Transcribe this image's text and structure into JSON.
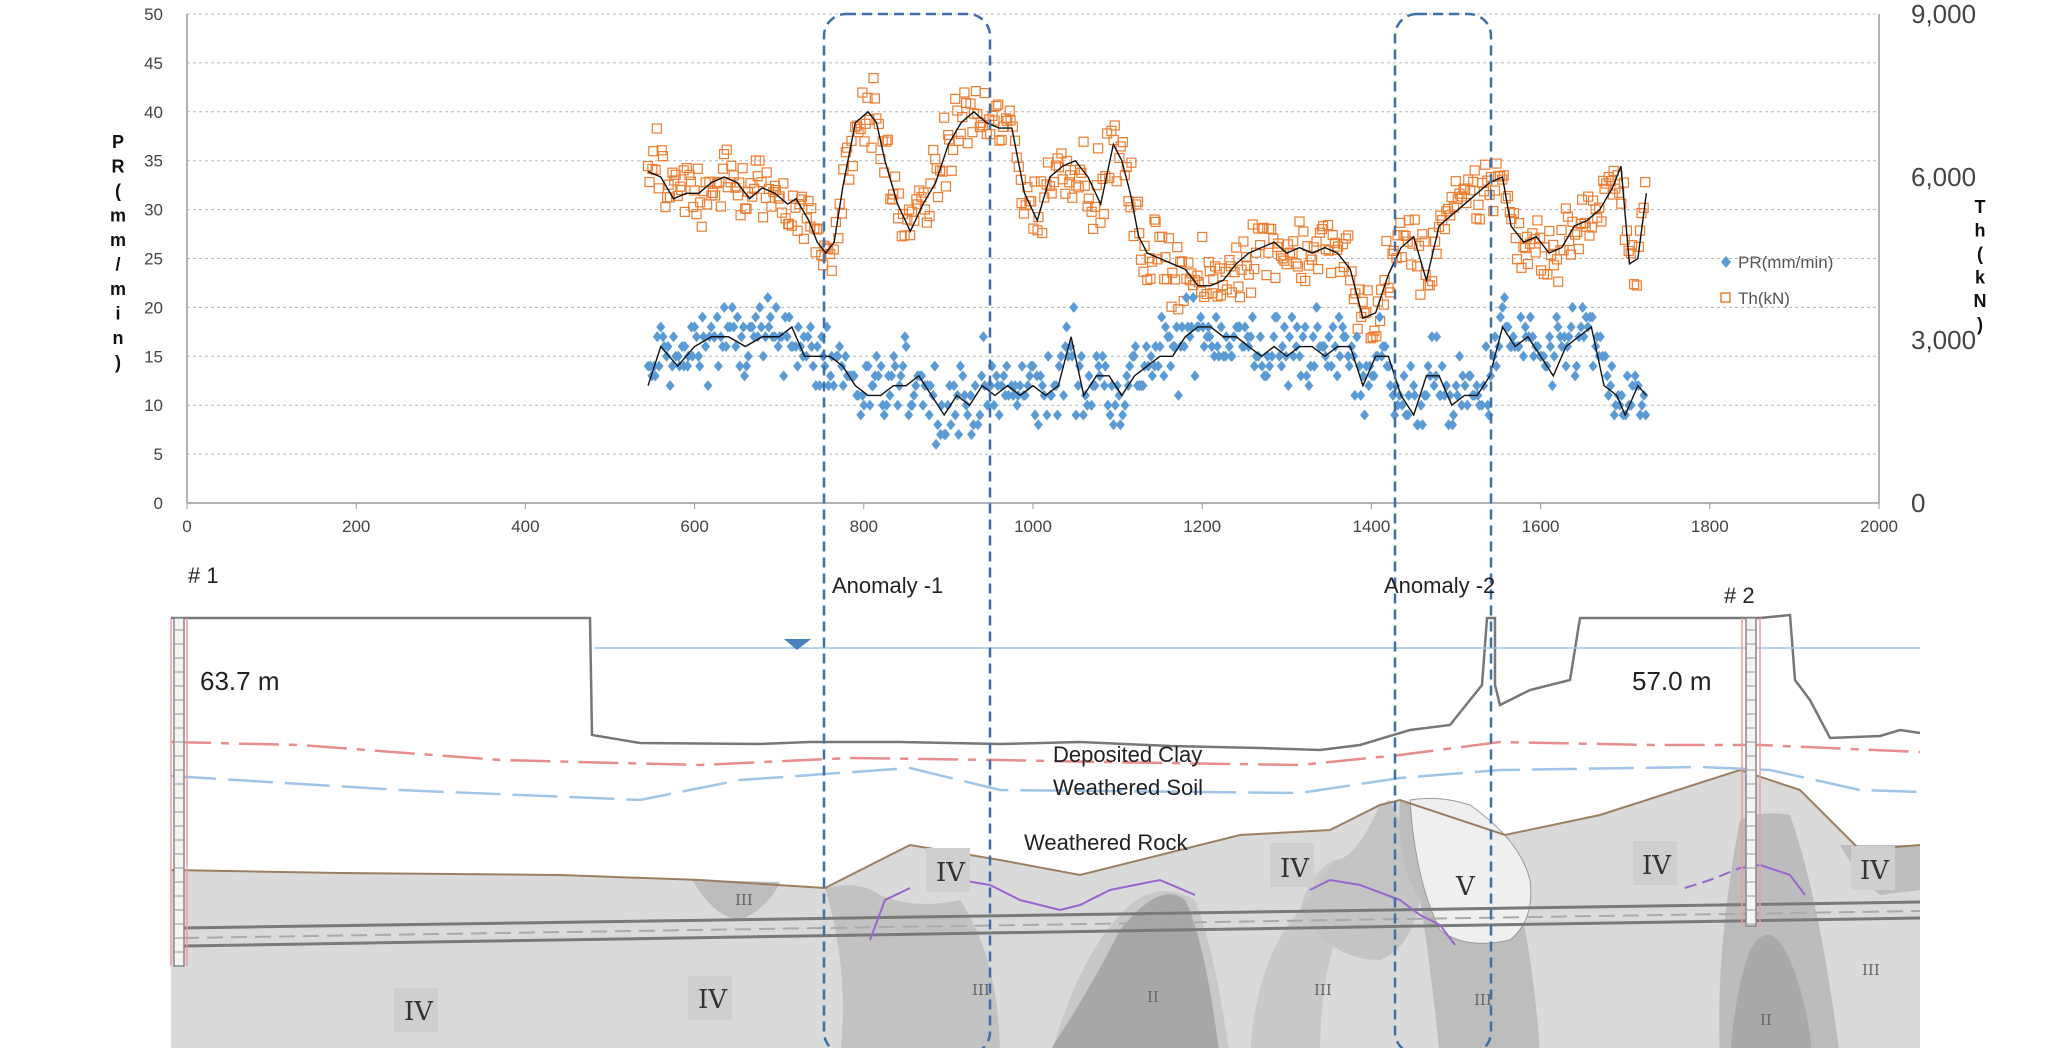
{
  "chart_data": {
    "type": "scatter",
    "x_ticks": [
      "0",
      "200",
      "400",
      "600",
      "800",
      "1000",
      "1200",
      "1400",
      "1600",
      "1800",
      "2000"
    ],
    "xlim": [
      0,
      2000
    ],
    "y_left_ticks": [
      "0",
      "5",
      "10",
      "15",
      "20",
      "25",
      "30",
      "35",
      "40",
      "45",
      "50"
    ],
    "ylim_left": [
      0,
      50
    ],
    "y_right_ticks": [
      "0",
      "3,000",
      "6,000",
      "9,000"
    ],
    "ylim_right": [
      0,
      9000
    ],
    "ylabel_left_chars": [
      "P",
      "R",
      "(",
      "m",
      "m",
      "/",
      "m",
      "i",
      "n",
      ")"
    ],
    "ylabel_right_chars": [
      "T",
      "h",
      "(",
      "k",
      "N",
      ")"
    ],
    "grid": true,
    "legend_position": "right",
    "series": [
      {
        "name": "PR(mm/min)",
        "axis": "left",
        "color": "#5B9BD5",
        "marker": "diamond",
        "trend": [
          [
            545,
            12
          ],
          [
            560,
            16
          ],
          [
            580,
            14
          ],
          [
            600,
            16
          ],
          [
            620,
            17
          ],
          [
            640,
            17
          ],
          [
            660,
            16
          ],
          [
            680,
            17
          ],
          [
            700,
            17
          ],
          [
            715,
            18
          ],
          [
            730,
            15
          ],
          [
            745,
            15
          ],
          [
            760,
            15
          ],
          [
            775,
            14
          ],
          [
            790,
            12
          ],
          [
            805,
            11
          ],
          [
            820,
            11
          ],
          [
            835,
            12
          ],
          [
            850,
            12
          ],
          [
            865,
            13
          ],
          [
            880,
            11
          ],
          [
            895,
            9
          ],
          [
            910,
            11
          ],
          [
            925,
            10
          ],
          [
            940,
            12
          ],
          [
            955,
            11
          ],
          [
            970,
            12
          ],
          [
            985,
            11
          ],
          [
            1000,
            12
          ],
          [
            1015,
            11
          ],
          [
            1030,
            12
          ],
          [
            1045,
            17
          ],
          [
            1060,
            11
          ],
          [
            1075,
            13
          ],
          [
            1090,
            13
          ],
          [
            1105,
            11
          ],
          [
            1120,
            13
          ],
          [
            1135,
            14
          ],
          [
            1150,
            15
          ],
          [
            1165,
            15
          ],
          [
            1180,
            17
          ],
          [
            1195,
            18
          ],
          [
            1210,
            18
          ],
          [
            1225,
            17
          ],
          [
            1240,
            17
          ],
          [
            1255,
            16
          ],
          [
            1270,
            15
          ],
          [
            1285,
            16
          ],
          [
            1300,
            15
          ],
          [
            1315,
            16
          ],
          [
            1330,
            16
          ],
          [
            1345,
            15
          ],
          [
            1360,
            16
          ],
          [
            1375,
            16
          ],
          [
            1390,
            12
          ],
          [
            1405,
            15
          ],
          [
            1420,
            15
          ],
          [
            1435,
            11
          ],
          [
            1450,
            9
          ],
          [
            1465,
            13
          ],
          [
            1480,
            13
          ],
          [
            1495,
            10
          ],
          [
            1510,
            11
          ],
          [
            1525,
            11
          ],
          [
            1540,
            13
          ],
          [
            1555,
            18
          ],
          [
            1570,
            16
          ],
          [
            1585,
            17
          ],
          [
            1600,
            15
          ],
          [
            1615,
            13
          ],
          [
            1630,
            16
          ],
          [
            1645,
            17
          ],
          [
            1660,
            18
          ],
          [
            1675,
            12
          ],
          [
            1690,
            11
          ],
          [
            1700,
            9
          ],
          [
            1715,
            12
          ],
          [
            1725,
            11
          ]
        ]
      },
      {
        "name": "Th(kN)",
        "axis": "right",
        "color": "#ED7D31",
        "marker": "open-square",
        "trend": [
          [
            545,
            6100
          ],
          [
            560,
            6000
          ],
          [
            575,
            5600
          ],
          [
            590,
            5700
          ],
          [
            605,
            5700
          ],
          [
            620,
            5900
          ],
          [
            635,
            6000
          ],
          [
            650,
            5900
          ],
          [
            665,
            5600
          ],
          [
            680,
            5800
          ],
          [
            695,
            5700
          ],
          [
            710,
            5500
          ],
          [
            720,
            5600
          ],
          [
            735,
            5200
          ],
          [
            745,
            4800
          ],
          [
            755,
            4600
          ],
          [
            765,
            4800
          ],
          [
            775,
            5800
          ],
          [
            790,
            7000
          ],
          [
            805,
            7200
          ],
          [
            815,
            7000
          ],
          [
            825,
            6300
          ],
          [
            840,
            5500
          ],
          [
            855,
            5000
          ],
          [
            870,
            5500
          ],
          [
            885,
            5900
          ],
          [
            900,
            6600
          ],
          [
            915,
            7000
          ],
          [
            930,
            7200
          ],
          [
            945,
            7000
          ],
          [
            960,
            6900
          ],
          [
            975,
            6900
          ],
          [
            990,
            5700
          ],
          [
            1005,
            5200
          ],
          [
            1020,
            6000
          ],
          [
            1035,
            6200
          ],
          [
            1050,
            6300
          ],
          [
            1065,
            6000
          ],
          [
            1080,
            5500
          ],
          [
            1095,
            6600
          ],
          [
            1105,
            6300
          ],
          [
            1115,
            5700
          ],
          [
            1125,
            4900
          ],
          [
            1135,
            4600
          ],
          [
            1150,
            4500
          ],
          [
            1165,
            4400
          ],
          [
            1180,
            4300
          ],
          [
            1195,
            4000
          ],
          [
            1210,
            4000
          ],
          [
            1225,
            4100
          ],
          [
            1240,
            4400
          ],
          [
            1255,
            4600
          ],
          [
            1270,
            4700
          ],
          [
            1285,
            4800
          ],
          [
            1300,
            4600
          ],
          [
            1315,
            4700
          ],
          [
            1330,
            4600
          ],
          [
            1345,
            4700
          ],
          [
            1360,
            4600
          ],
          [
            1375,
            4300
          ],
          [
            1390,
            3400
          ],
          [
            1405,
            3500
          ],
          [
            1420,
            4200
          ],
          [
            1435,
            4700
          ],
          [
            1450,
            4900
          ],
          [
            1465,
            4100
          ],
          [
            1480,
            5100
          ],
          [
            1495,
            5300
          ],
          [
            1510,
            5500
          ],
          [
            1525,
            5700
          ],
          [
            1540,
            5900
          ],
          [
            1555,
            6000
          ],
          [
            1565,
            5100
          ],
          [
            1580,
            4800
          ],
          [
            1595,
            4900
          ],
          [
            1610,
            4600
          ],
          [
            1625,
            4700
          ],
          [
            1640,
            5100
          ],
          [
            1655,
            5200
          ],
          [
            1670,
            5400
          ],
          [
            1685,
            5800
          ],
          [
            1695,
            6200
          ],
          [
            1705,
            4400
          ],
          [
            1715,
            4500
          ],
          [
            1725,
            5700
          ]
        ]
      }
    ],
    "anomaly_zones": [
      {
        "label": "Anomaly -1",
        "x_range": [
          760,
          955
        ]
      },
      {
        "label": "Anomaly -2",
        "x_range": [
          1435,
          1550
        ]
      }
    ]
  },
  "section": {
    "borehole_1": {
      "label": "# 1",
      "depth": "63.7 m"
    },
    "borehole_2": {
      "label": "# 2",
      "depth": "57.0 m"
    },
    "layers": [
      "Deposited Clay",
      "Weathered Soil",
      "Weathered Rock"
    ],
    "grades": {
      "IV": "IV",
      "V": "V",
      "III": "III",
      "II": "II"
    }
  }
}
